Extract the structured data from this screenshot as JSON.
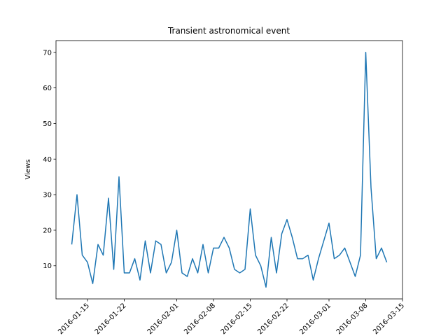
{
  "chart_data": {
    "type": "line",
    "title": "Transient astronomical event",
    "ylabel": "Views",
    "x": [
      "2016-01-12",
      "2016-01-13",
      "2016-01-14",
      "2016-01-15",
      "2016-01-16",
      "2016-01-17",
      "2016-01-18",
      "2016-01-19",
      "2016-01-20",
      "2016-01-21",
      "2016-01-22",
      "2016-01-23",
      "2016-01-24",
      "2016-01-25",
      "2016-01-26",
      "2016-01-27",
      "2016-01-28",
      "2016-01-29",
      "2016-01-30",
      "2016-01-31",
      "2016-02-01",
      "2016-02-02",
      "2016-02-03",
      "2016-02-04",
      "2016-02-05",
      "2016-02-06",
      "2016-02-07",
      "2016-02-08",
      "2016-02-09",
      "2016-02-10",
      "2016-02-11",
      "2016-02-12",
      "2016-02-13",
      "2016-02-14",
      "2016-02-15",
      "2016-02-16",
      "2016-02-17",
      "2016-02-18",
      "2016-02-19",
      "2016-02-20",
      "2016-02-21",
      "2016-02-22",
      "2016-02-23",
      "2016-02-24",
      "2016-02-25",
      "2016-02-26",
      "2016-02-27",
      "2016-02-28",
      "2016-02-29",
      "2016-03-01",
      "2016-03-02",
      "2016-03-03",
      "2016-03-04",
      "2016-03-05",
      "2016-03-06",
      "2016-03-07",
      "2016-03-08",
      "2016-03-09",
      "2016-03-10",
      "2016-03-11",
      "2016-03-12"
    ],
    "values": [
      16,
      30,
      13,
      11,
      5,
      16,
      13,
      29,
      9,
      35,
      8,
      8,
      12,
      6,
      17,
      8,
      17,
      16,
      8,
      11,
      20,
      8,
      7,
      12,
      8,
      16,
      8,
      15,
      15,
      18,
      15,
      9,
      8,
      9,
      26,
      13,
      10,
      4,
      18,
      8,
      19,
      23,
      18,
      12,
      12,
      13,
      6,
      12,
      17,
      22,
      12,
      13,
      15,
      11,
      7,
      13,
      70,
      32,
      12,
      15,
      11
    ],
    "color": "#1f77b4",
    "xlim": [
      "2016-01-09",
      "2016-03-15"
    ],
    "xticks": [
      "2016-01-15",
      "2016-01-22",
      "2016-02-01",
      "2016-02-08",
      "2016-02-15",
      "2016-02-22",
      "2016-03-01",
      "2016-03-08",
      "2016-03-15"
    ],
    "ylim": [
      0.7,
      73.3
    ],
    "yticks": [
      10,
      20,
      30,
      40,
      50,
      60,
      70
    ]
  }
}
